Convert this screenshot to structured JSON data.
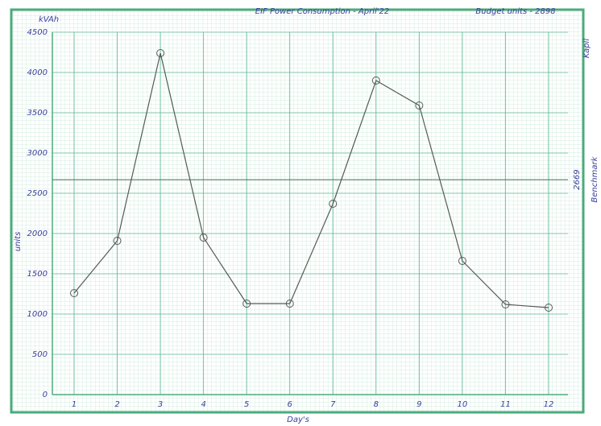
{
  "chart_data": {
    "type": "line",
    "title": "EIF Power Consumption - April'22",
    "subtitle": "Budget units - 2898",
    "y_unit": "kVAh",
    "y_label": "units",
    "x_label": "Day's",
    "brand": "Kapil",
    "benchmark": {
      "value": 2669,
      "name": "Benchmark"
    },
    "categories": [
      "1",
      "2",
      "3",
      "4",
      "5",
      "6",
      "7",
      "8",
      "9",
      "10",
      "11",
      "12"
    ],
    "series": [
      {
        "name": "kVAh",
        "color": "#555a55",
        "values": [
          1260,
          1910,
          4240,
          1950,
          1130,
          1130,
          2370,
          3900,
          3590,
          1660,
          1120,
          1080
        ]
      }
    ],
    "ylim": [
      0,
      4500
    ],
    "yticks": [
      0,
      500,
      1000,
      1500,
      2000,
      2500,
      3000,
      3500,
      4000,
      4500
    ],
    "grid": true
  }
}
